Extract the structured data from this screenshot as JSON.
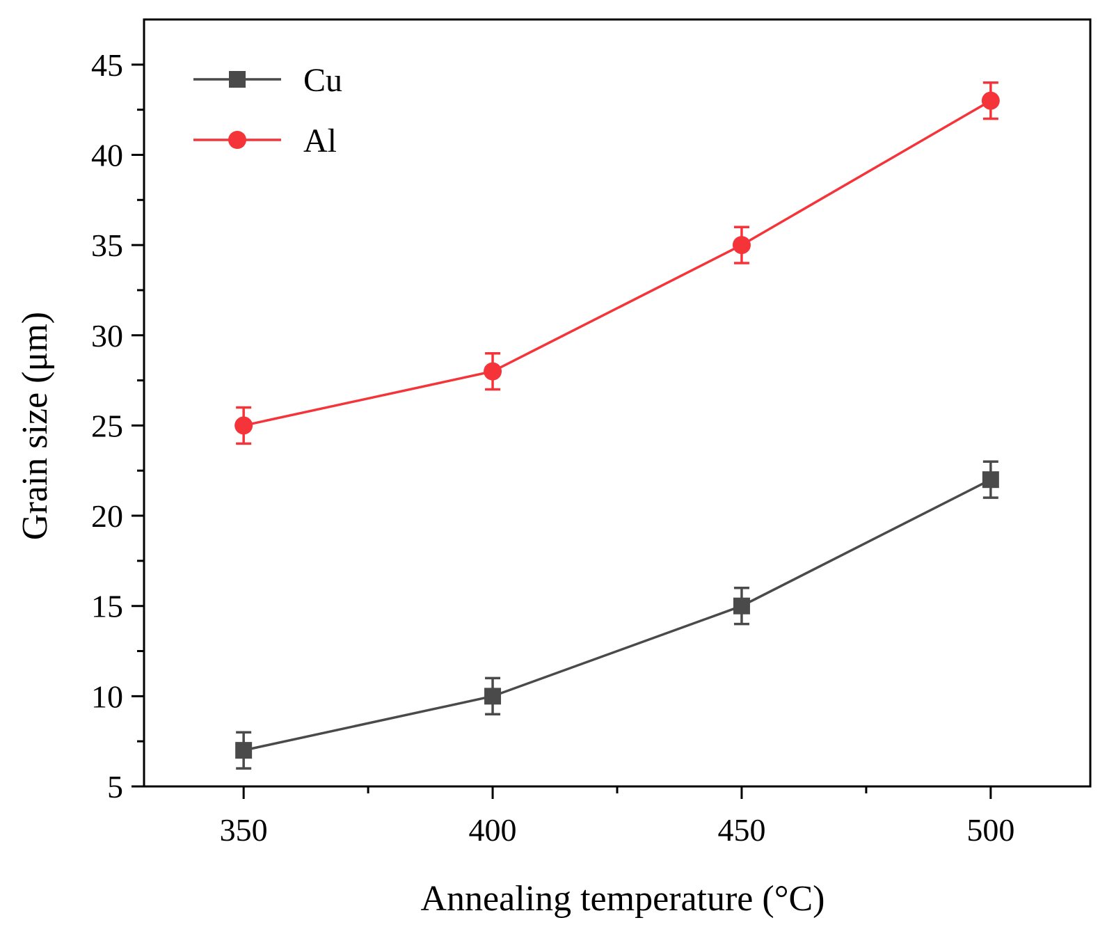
{
  "chart_data": {
    "type": "line",
    "xlabel": "Annealing temperature (°C)",
    "ylabel": "Grain size (μm)",
    "xlim": [
      330,
      520
    ],
    "ylim": [
      5,
      47.5
    ],
    "xticks": [
      350,
      400,
      450,
      500
    ],
    "yticks": [
      5,
      10,
      15,
      20,
      25,
      30,
      35,
      40,
      45
    ],
    "x": [
      350,
      400,
      450,
      500
    ],
    "series": [
      {
        "name": "Cu",
        "color": "#4a4a4a",
        "marker": "square",
        "values": [
          7,
          10,
          15,
          22
        ],
        "errors": [
          1,
          1,
          1,
          1
        ]
      },
      {
        "name": "Al",
        "color": "#f5343a",
        "marker": "circle",
        "values": [
          25,
          28,
          35,
          43
        ],
        "errors": [
          1,
          1,
          1,
          1
        ]
      }
    ],
    "legend": "top-left",
    "grid": false
  }
}
